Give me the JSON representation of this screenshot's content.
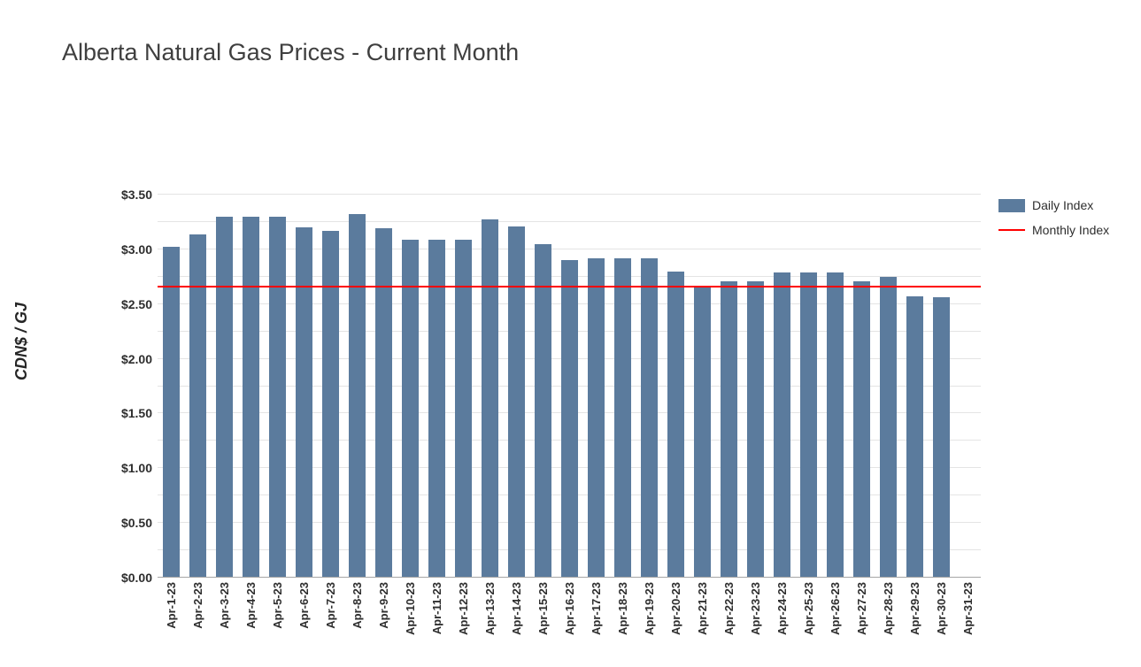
{
  "chart_data": {
    "type": "bar",
    "title": "Alberta Natural Gas Prices - Current Month",
    "ylabel": "CDN$ / GJ",
    "xlabel": "",
    "ylim": [
      0,
      3.5
    ],
    "y_tick_step": 0.5,
    "y_minor_grid_step": 0.25,
    "grid": true,
    "legend_position": "right-top",
    "categories": [
      "Apr-1-23",
      "Apr-2-23",
      "Apr-3-23",
      "Apr-4-23",
      "Apr-5-23",
      "Apr-6-23",
      "Apr-7-23",
      "Apr-8-23",
      "Apr-9-23",
      "Apr-10-23",
      "Apr-11-23",
      "Apr-12-23",
      "Apr-13-23",
      "Apr-14-23",
      "Apr-15-23",
      "Apr-16-23",
      "Apr-17-23",
      "Apr-18-23",
      "Apr-19-23",
      "Apr-20-23",
      "Apr-21-23",
      "Apr-22-23",
      "Apr-23-23",
      "Apr-24-23",
      "Apr-25-23",
      "Apr-26-23",
      "Apr-27-23",
      "Apr-28-23",
      "Apr-29-23",
      "Apr-30-23",
      "Apr-31-23"
    ],
    "series": [
      {
        "name": "Daily Index",
        "color": "#5b7b9d",
        "values": [
          3.02,
          3.14,
          3.3,
          3.3,
          3.3,
          3.2,
          3.17,
          3.32,
          3.19,
          3.09,
          3.09,
          3.09,
          3.27,
          3.21,
          3.05,
          2.9,
          2.92,
          2.92,
          2.92,
          2.8,
          2.67,
          2.71,
          2.71,
          2.79,
          2.79,
          2.79,
          2.71,
          2.75,
          2.57,
          2.56,
          null
        ]
      },
      {
        "name": "Monthly Index",
        "color": "#ff0000",
        "type": "line",
        "value": 2.66
      }
    ],
    "legend": {
      "daily": "Daily Index",
      "monthly": "Monthly Index"
    }
  }
}
